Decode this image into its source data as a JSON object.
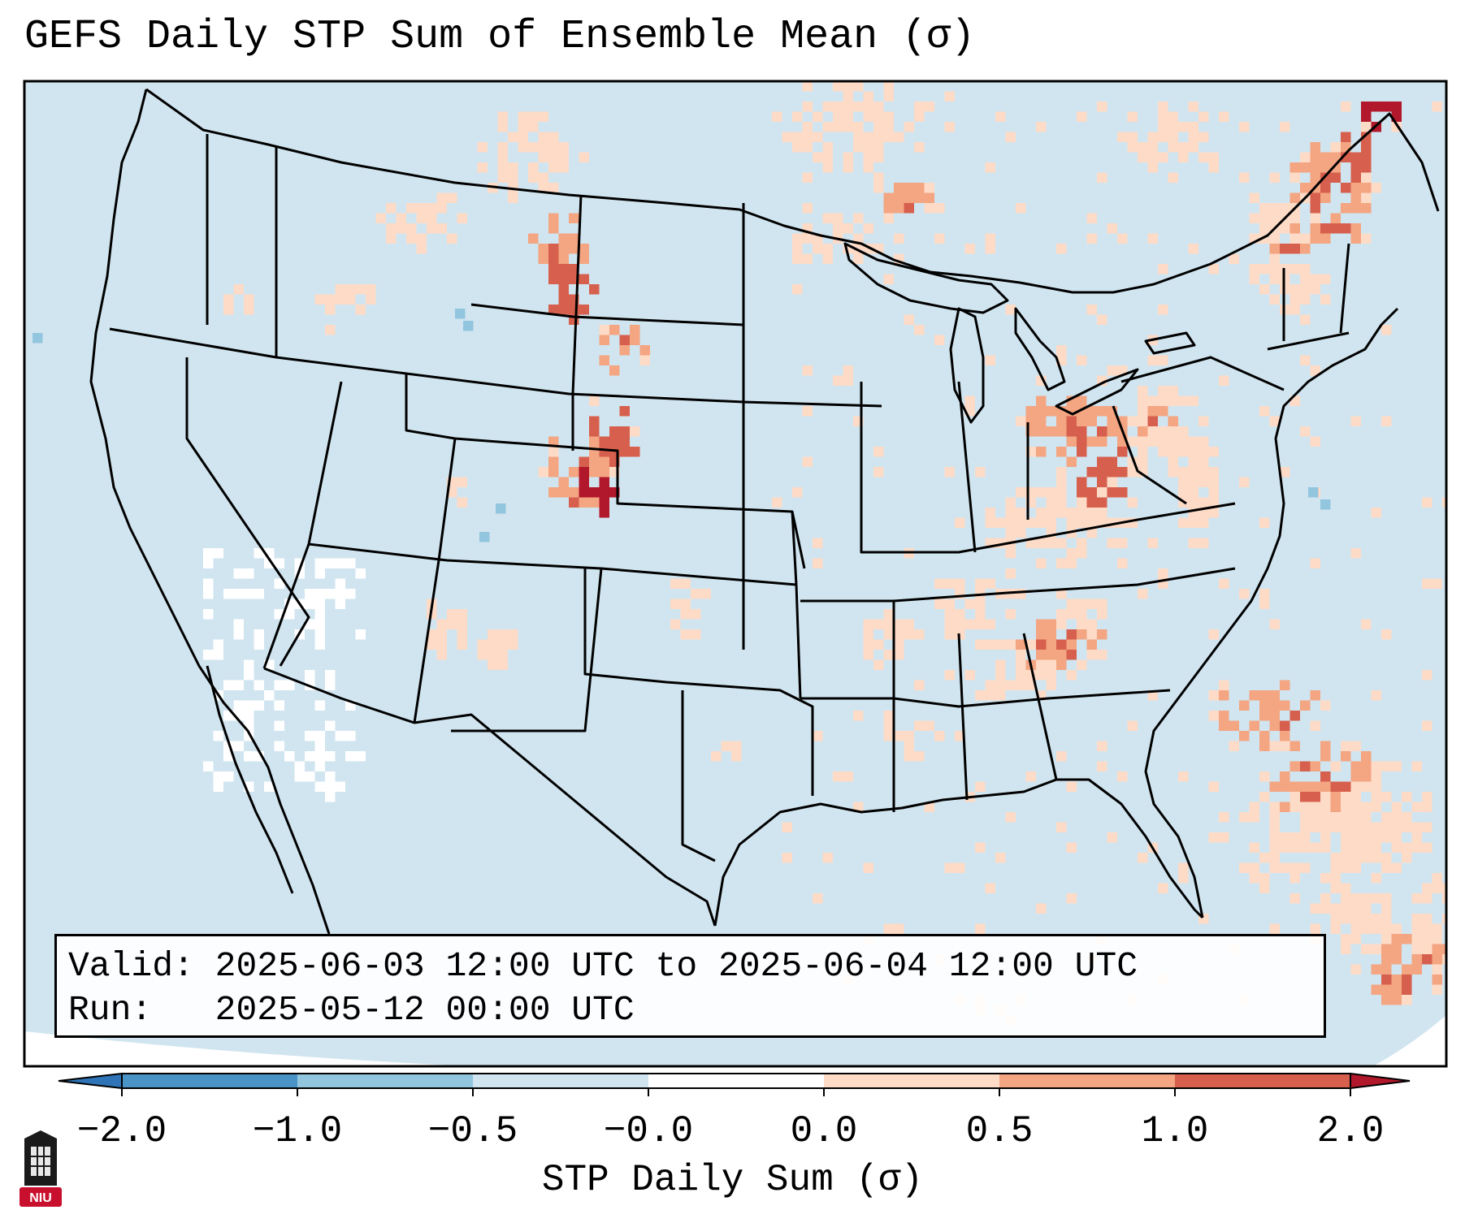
{
  "title": "GEFS Daily STP Sum of Ensemble Mean (σ)",
  "info": {
    "valid_label": "Valid:",
    "valid_value": "2025-06-03 12:00 UTC to 2025-06-04 12:00 UTC",
    "run_label": "Run:",
    "run_value": "2025-05-12 00:00 UTC"
  },
  "colorbar": {
    "label": "STP Daily Sum (σ)",
    "ticks": [
      "−2.0",
      "−1.0",
      "−0.5",
      "−0.0",
      "0.0",
      "0.5",
      "1.0",
      "2.0"
    ],
    "bins": [
      {
        "range": "< -2.0",
        "color": "#2e74b6"
      },
      {
        "range": "-2.0 to -1.0",
        "color": "#4a93c6"
      },
      {
        "range": "-1.0 to -0.5",
        "color": "#92c5de"
      },
      {
        "range": "-0.5 to -0.0",
        "color": "#d1e5f0"
      },
      {
        "range": "-0.0 to 0.0",
        "color": "#ffffff"
      },
      {
        "range": "0.0 to 0.5",
        "color": "#fddbc7"
      },
      {
        "range": "0.5 to 1.0",
        "color": "#f4a582"
      },
      {
        "range": "1.0 to 2.0",
        "color": "#d6604d"
      },
      {
        "range": "> 2.0",
        "color": "#b2182b"
      }
    ]
  },
  "logo": {
    "text": "NIU"
  }
}
